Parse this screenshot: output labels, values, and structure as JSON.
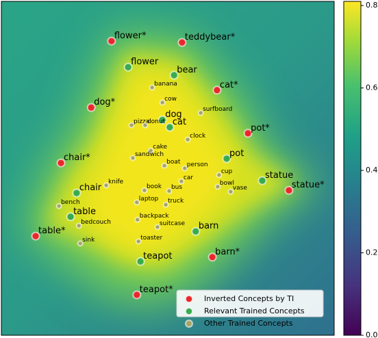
{
  "chart_data": {
    "type": "scatter",
    "xlim": [
      0,
      100
    ],
    "ylim": [
      0,
      100
    ],
    "series": [
      {
        "name": "Inverted Concepts by TI",
        "color": "#e8282b",
        "labels": [
          "flower*",
          "teddybear*",
          "cat*",
          "dog*",
          "pot*",
          "chair*",
          "statue*",
          "table*",
          "barn*",
          "teapot*"
        ],
        "x": [
          33.1,
          54.3,
          64.8,
          27.0,
          74.1,
          17.9,
          86.4,
          10.3,
          63.4,
          40.7
        ],
        "y": [
          88.1,
          87.7,
          73.4,
          68.2,
          60.5,
          51.6,
          43.4,
          29.7,
          23.4,
          12.1
        ]
      },
      {
        "name": "Relevant Trained Concepts",
        "color": "#3aab4d",
        "labels": [
          "flower",
          "bear",
          "dog",
          "cat",
          "pot",
          "statue",
          "chair",
          "table",
          "barn",
          "teapot"
        ],
        "x": [
          38.1,
          51.9,
          48.4,
          50.6,
          67.7,
          78.4,
          22.6,
          20.8,
          58.4,
          41.8
        ],
        "y": [
          80.3,
          77.9,
          64.5,
          62.3,
          52.9,
          46.3,
          42.6,
          35.5,
          31.1,
          22.1
        ]
      },
      {
        "name": "Other Trained Concepts",
        "color": "#a5a467",
        "labels": [
          "banana",
          "cow",
          "surfboard",
          "pizza",
          "donut",
          "clock",
          "cake",
          "sandwich",
          "boat",
          "person",
          "cup",
          "car",
          "bowl",
          "vase",
          "knife",
          "book",
          "bus",
          "bench",
          "laptop",
          "truck",
          "backpack",
          "bedcouch",
          "suitcase",
          "sink",
          "toaster"
        ],
        "x": [
          45.3,
          48.4,
          59.9,
          39.1,
          43.2,
          56.0,
          44.9,
          39.5,
          49.0,
          55.1,
          65.4,
          54.1,
          65.0,
          68.9,
          31.5,
          43.0,
          50.4,
          17.3,
          40.7,
          49.4,
          40.9,
          23.3,
          46.9,
          23.7,
          41.2
        ],
        "y": [
          74.2,
          69.7,
          66.6,
          62.9,
          62.9,
          58.6,
          55.3,
          53.1,
          50.8,
          50.0,
          48.0,
          46.1,
          44.5,
          43.0,
          44.9,
          43.4,
          43.2,
          38.7,
          39.8,
          39.1,
          34.6,
          32.8,
          32.4,
          27.5,
          28.1
        ]
      }
    ],
    "legend": "lower right",
    "colorbar": {
      "lim": [
        0,
        0.81
      ],
      "ticks": [
        {
          "value": 0,
          "label": "0.0"
        },
        0.2,
        0.4,
        0.6,
        0.8
      ]
    }
  }
}
